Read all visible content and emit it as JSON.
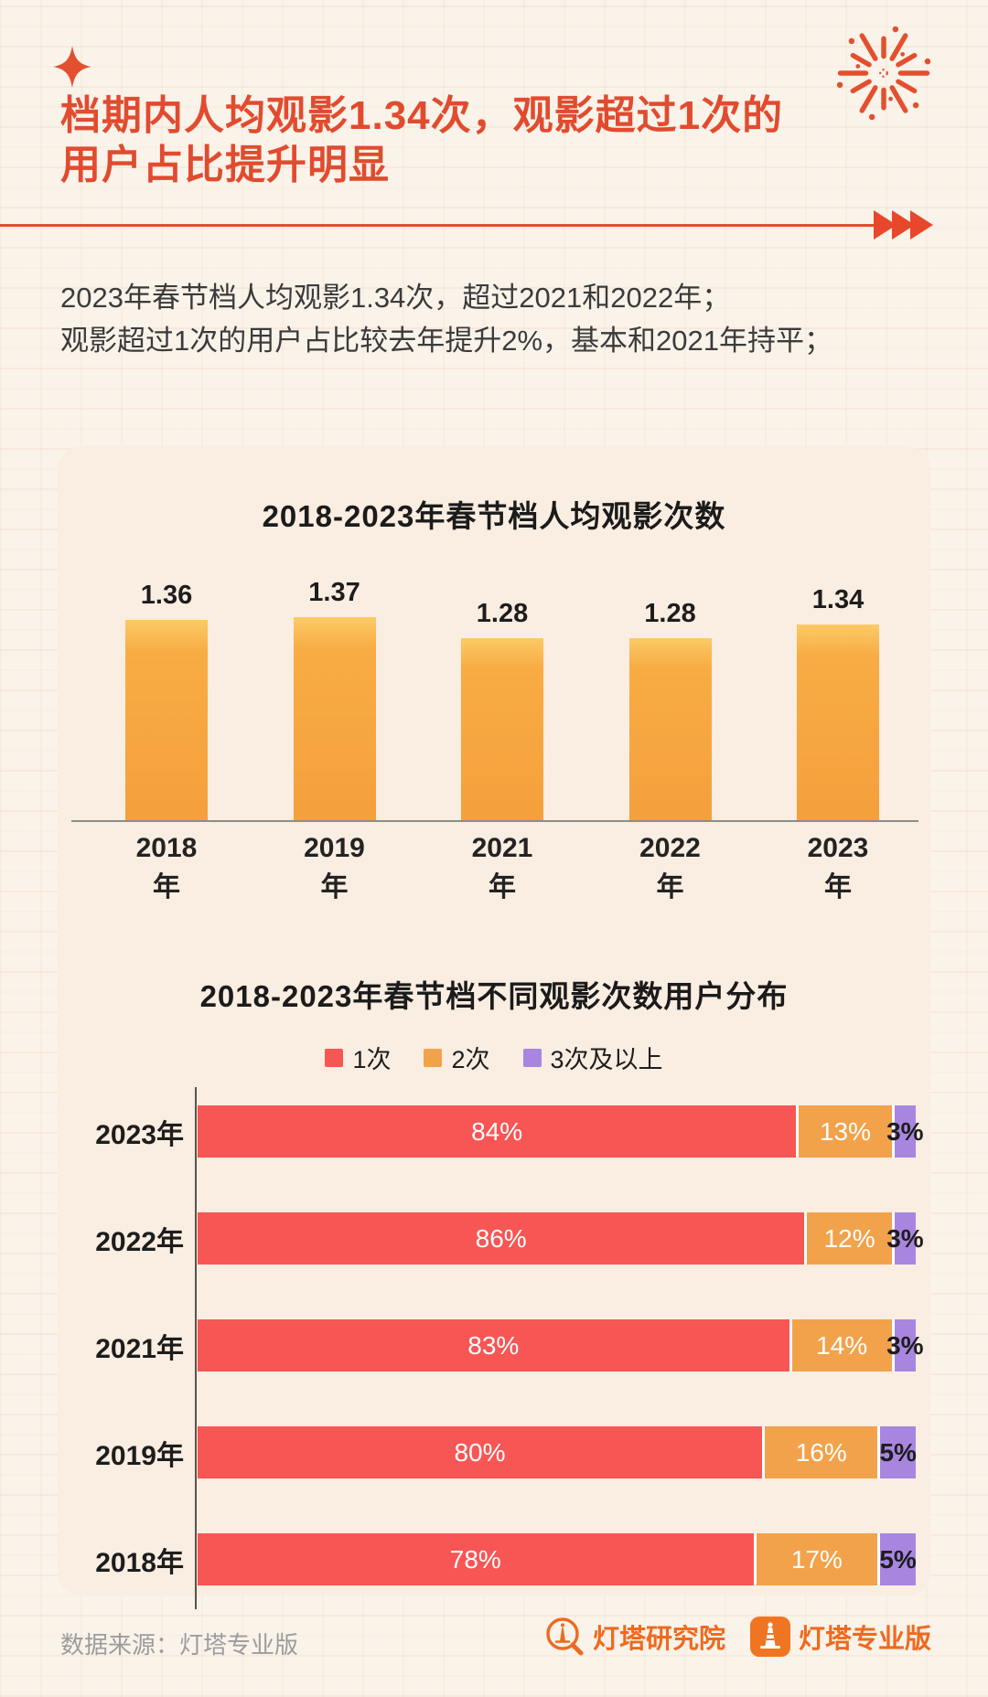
{
  "header": {
    "title_line1": "档期内人均观影1.34次，观影超过1次的",
    "title_line2": "用户占比提升明显",
    "intro_line1": "2023年春节档人均观影1.34次，超过2021和2022年；",
    "intro_line2": "观影超过1次的用户占比较去年提升2%，基本和2021年持平；"
  },
  "footer": {
    "source": "数据来源：灯塔专业版",
    "brand1": "灯塔研究院",
    "brand2": "灯塔专业版"
  },
  "colors": {
    "accent_red": "#E14B2F",
    "body_text": "#3B3B3B",
    "card_bg": "#FAEDE1",
    "amber_bar_top": "#FCCA67",
    "amber_bar_bottom": "#F4A03C",
    "brand_orange": "#EE6A1F"
  },
  "chart_data": [
    {
      "type": "bar",
      "orientation": "vertical",
      "title": "2018-2023年春节档人均观影次数",
      "categories": [
        "2018年",
        "2019年",
        "2021年",
        "2022年",
        "2023年"
      ],
      "values": [
        1.36,
        1.37,
        1.28,
        1.28,
        1.34
      ],
      "value_labels": [
        "1.36",
        "1.37",
        "1.28",
        "1.28",
        "1.34"
      ],
      "bar_color": "#F7A840",
      "grid": false,
      "ylim": [
        0.5,
        1.45
      ]
    },
    {
      "type": "bar",
      "orientation": "horizontal-stacked",
      "title": "2018-2023年春节档不同观影次数用户分布",
      "categories": [
        "2023年",
        "2022年",
        "2021年",
        "2019年",
        "2018年"
      ],
      "series": [
        {
          "name": "1次",
          "color": "#F75654",
          "values": [
            84,
            86,
            83,
            80,
            78
          ]
        },
        {
          "name": "2次",
          "color": "#F2A24B",
          "values": [
            13,
            12,
            14,
            16,
            17
          ]
        },
        {
          "name": "3次及以上",
          "color": "#A886E0",
          "values": [
            3,
            3,
            3,
            5,
            5
          ]
        }
      ],
      "value_suffix": "%",
      "legend_position": "top",
      "grid": false
    }
  ]
}
